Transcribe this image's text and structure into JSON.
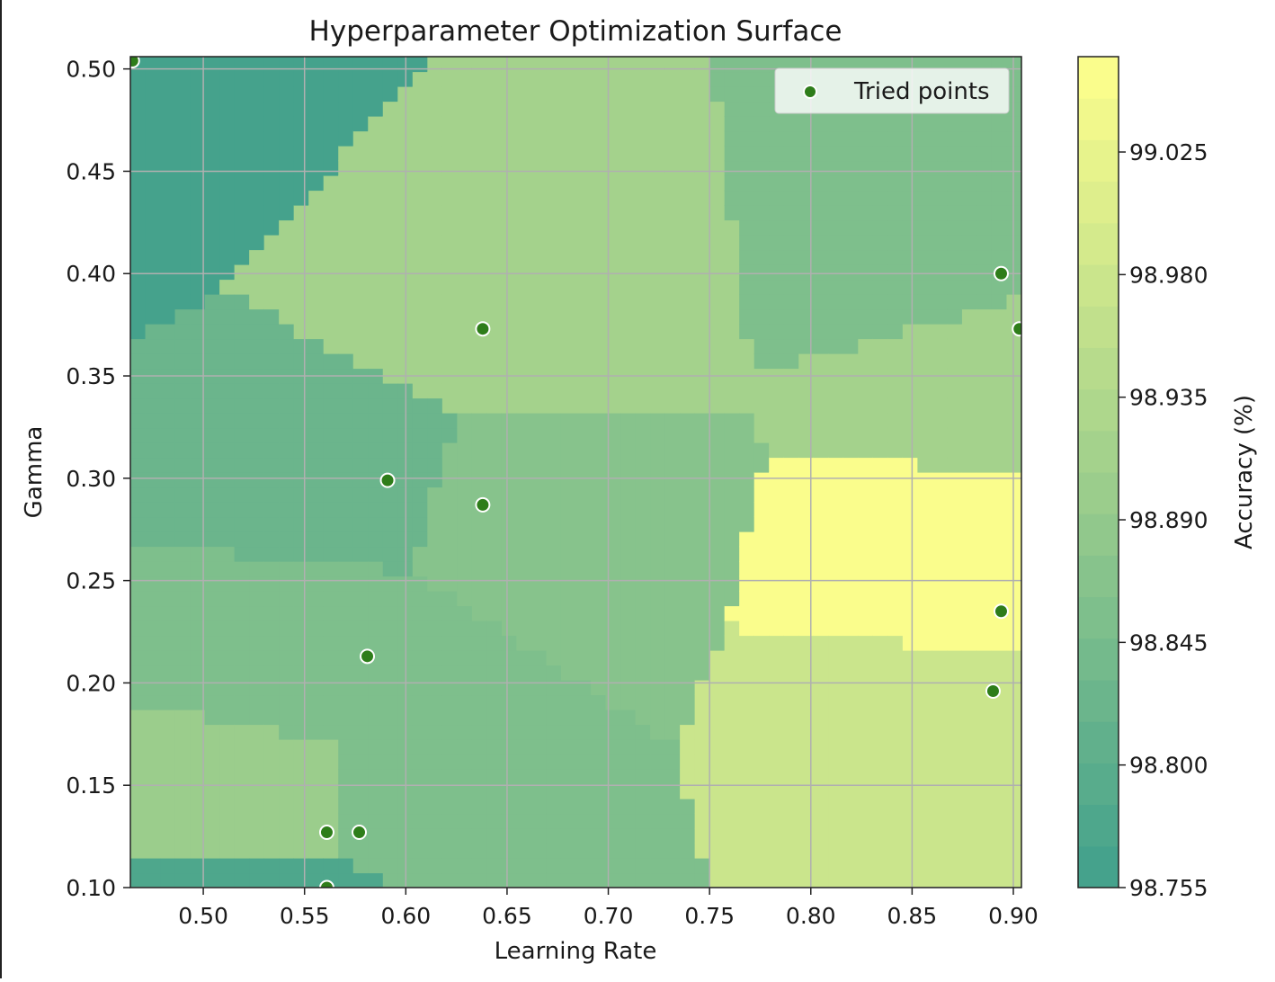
{
  "chart_data": {
    "type": "heatmap",
    "subtype": "filled-contour (nearest-neighbour surface) with scatter overlay",
    "title": "Hyperparameter Optimization Surface",
    "xlabel": "Learning Rate",
    "ylabel": "Gamma",
    "xlim": [
      0.464,
      0.904
    ],
    "ylim": [
      0.1,
      0.506
    ],
    "x_ticks": [
      0.5,
      0.55,
      0.6,
      0.65,
      0.7,
      0.75,
      0.8,
      0.85,
      0.9
    ],
    "y_ticks": [
      0.1,
      0.15,
      0.2,
      0.25,
      0.3,
      0.35,
      0.4,
      0.45,
      0.5
    ],
    "x_tick_labels": [
      "0.50",
      "0.55",
      "0.60",
      "0.65",
      "0.70",
      "0.75",
      "0.80",
      "0.85",
      "0.90"
    ],
    "y_tick_labels": [
      "0.10",
      "0.15",
      "0.20",
      "0.25",
      "0.30",
      "0.35",
      "0.40",
      "0.45",
      "0.50"
    ],
    "grid": true,
    "colorbar": {
      "label": "Accuracy (%)",
      "range": [
        98.755,
        99.06
      ],
      "ticks": [
        98.755,
        98.8,
        98.845,
        98.89,
        98.935,
        98.98,
        99.025
      ],
      "tick_labels": [
        "98.755",
        "98.800",
        "98.845",
        "98.890",
        "98.935",
        "98.980",
        "99.025"
      ],
      "colormap": "summer",
      "alpha": 0.75,
      "colormap_low_color": "#008066",
      "colormap_high_color": "#ffff66"
    },
    "legend": {
      "entries": [
        "Tried points"
      ],
      "placement": "top-right"
    },
    "series": [
      {
        "name": "Tried points",
        "kind": "scatter",
        "color": "#2e7d1a",
        "edge_color": "#ffffff",
        "points": [
          {
            "x": 0.465,
            "y": 0.504,
            "z": 98.76
          },
          {
            "x": 0.638,
            "y": 0.373,
            "z": 98.91
          },
          {
            "x": 0.591,
            "y": 0.299,
            "z": 98.83
          },
          {
            "x": 0.638,
            "y": 0.287,
            "z": 98.87
          },
          {
            "x": 0.581,
            "y": 0.213,
            "z": 98.86
          },
          {
            "x": 0.561,
            "y": 0.127,
            "z": 98.9
          },
          {
            "x": 0.577,
            "y": 0.127,
            "z": 98.86
          },
          {
            "x": 0.561,
            "y": 0.1,
            "z": 98.78
          },
          {
            "x": 0.894,
            "y": 0.4,
            "z": 98.85
          },
          {
            "x": 0.903,
            "y": 0.373,
            "z": 98.91
          },
          {
            "x": 0.894,
            "y": 0.235,
            "z": 99.05
          },
          {
            "x": 0.89,
            "y": 0.196,
            "z": 98.97
          }
        ]
      }
    ]
  }
}
